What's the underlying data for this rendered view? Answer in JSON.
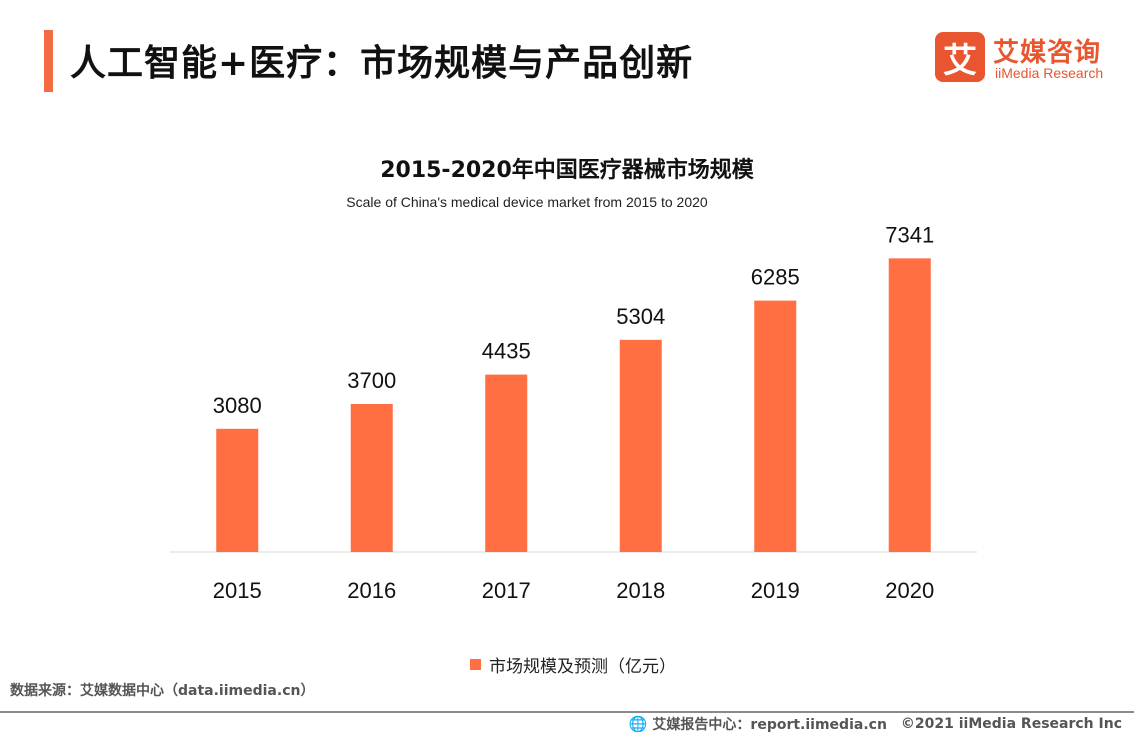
{
  "page": {
    "title": "人工智能+医疗：市场规模与产品创新"
  },
  "logo": {
    "mark": "艾",
    "cn": "艾媒咨询",
    "en": "iiMedia Research"
  },
  "chart_data": {
    "type": "bar",
    "title": "2015-2020年中国医疗器械市场规模",
    "subtitle": "Scale of China's medical device market from 2015 to 2020",
    "categories": [
      "2015",
      "2016",
      "2017",
      "2018",
      "2019",
      "2020"
    ],
    "series": [
      {
        "name": "市场规模及预测（亿元）",
        "values": [
          3080,
          3700,
          4435,
          5304,
          6285,
          7341
        ],
        "color": "#ff6f42"
      }
    ],
    "xlabel": "",
    "ylabel": "",
    "ylim": [
      0,
      7500
    ],
    "grid": false,
    "legend": "bottom-center"
  },
  "footer": {
    "source": "数据来源：艾媒数据中心（data.iimedia.cn）",
    "report_center": "艾媒报告中心：report.iimedia.cn",
    "copyright": "©2021  iiMedia Research  Inc"
  }
}
